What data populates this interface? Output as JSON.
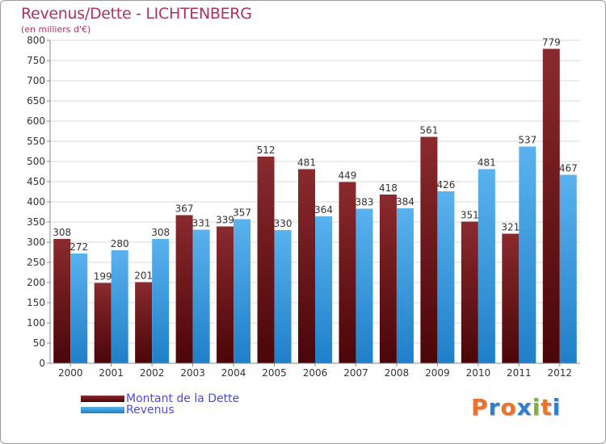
{
  "chart_data": {
    "type": "bar",
    "title": "Revenus/Dette - LICHTENBERG",
    "subtitle": "(en milliers d'€)",
    "categories": [
      "2000",
      "2001",
      "2002",
      "2003",
      "2004",
      "2005",
      "2006",
      "2007",
      "2008",
      "2009",
      "2010",
      "2011",
      "2012"
    ],
    "series": [
      {
        "name": "Montant de la Dette",
        "color": "#7a1a1e",
        "values": [
          308,
          199,
          201,
          367,
          339,
          512,
          481,
          449,
          418,
          561,
          351,
          321,
          779
        ]
      },
      {
        "name": "Revenus",
        "color": "#3d9ee0",
        "values": [
          272,
          280,
          308,
          331,
          357,
          330,
          364,
          383,
          384,
          426,
          481,
          537,
          467
        ]
      }
    ],
    "ylim": [
      0,
      800
    ],
    "yticks": [
      0,
      50,
      100,
      150,
      200,
      250,
      300,
      350,
      400,
      450,
      500,
      550,
      600,
      650,
      700,
      750,
      800
    ],
    "grid": true,
    "legend": "bottom-left"
  },
  "logo": {
    "letters": [
      "P",
      "r",
      "o",
      "x",
      "i",
      "t",
      "i"
    ],
    "colors": [
      "#e8732a",
      "#2f7fd0",
      "#e8732a",
      "#2f7fd0",
      "#7cb82f",
      "#e8732a",
      "#2f7fd0"
    ]
  }
}
